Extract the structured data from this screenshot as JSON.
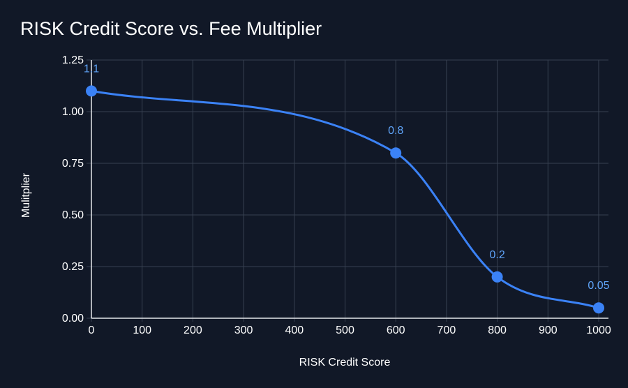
{
  "chart_data": {
    "type": "line",
    "title": "RISK Credit Score vs. Fee Multiplier",
    "xlabel": "RISK Credit Score",
    "ylabel": "Mulitplier",
    "xlim": [
      0,
      1000
    ],
    "ylim": [
      0,
      1.25
    ],
    "x_ticks": [
      0,
      100,
      200,
      300,
      400,
      500,
      600,
      700,
      800,
      900,
      1000
    ],
    "y_ticks": [
      0.0,
      0.25,
      0.5,
      0.75,
      1.0,
      1.25
    ],
    "y_tick_labels": [
      "0.00",
      "0.25",
      "0.50",
      "0.75",
      "1.00",
      "1.25"
    ],
    "x_tick_labels": [
      "0",
      "100",
      "200",
      "300",
      "400",
      "500",
      "600",
      "700",
      "800",
      "900",
      "1000"
    ],
    "grid": true,
    "series": [
      {
        "x": [
          0,
          600,
          800,
          1000
        ],
        "y": [
          1.1,
          0.8,
          0.2,
          0.05
        ],
        "labels": [
          "1.1",
          "0.8",
          "0.2",
          "0.05"
        ],
        "color": "#3b82f6",
        "smooth": true
      }
    ],
    "colors": {
      "background": "#111827",
      "grid": "#374151",
      "axis": "#e5e7eb",
      "text": "#ffffff",
      "line": "#3b82f6",
      "point": "#3b82f6",
      "data_label": "#60a5fa"
    }
  }
}
